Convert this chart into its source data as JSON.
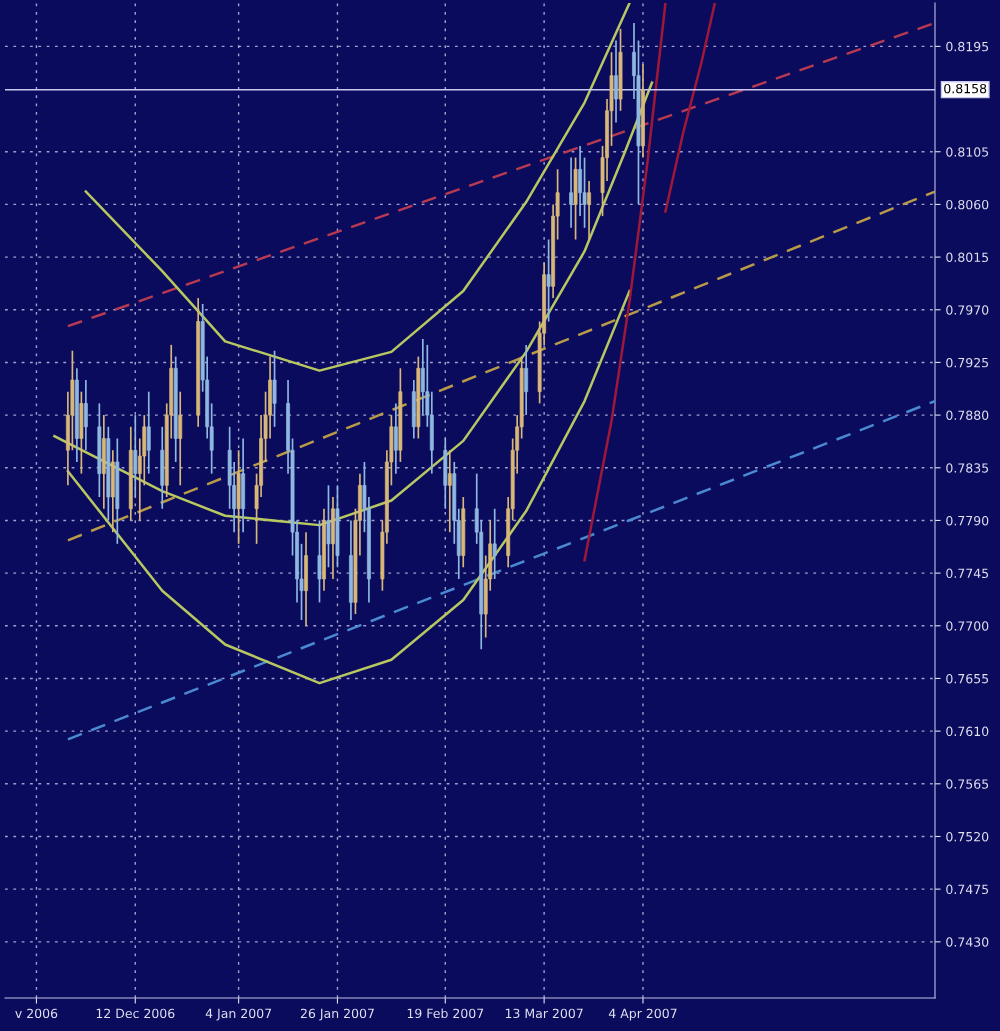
{
  "chart_data": {
    "type": "candlestick",
    "xlim": [
      "2006-11-13",
      "2007-06-08"
    ],
    "xticks": [
      {
        "value": "2006-11-20",
        "label": "v 2006"
      },
      {
        "value": "2006-12-12",
        "label": "12 Dec 2006"
      },
      {
        "value": "2007-01-04",
        "label": "4 Jan 2007"
      },
      {
        "value": "2007-01-26",
        "label": "26 Jan 2007"
      },
      {
        "value": "2007-02-19",
        "label": "19 Feb 2007"
      },
      {
        "value": "2007-03-13",
        "label": "13 Mar 2007"
      },
      {
        "value": "2007-04-04",
        "label": "4 Apr 2007"
      }
    ],
    "ylim": [
      0.7382,
      0.8232
    ],
    "yticks": [
      {
        "value": 0.743,
        "label": "0.7430"
      },
      0.7475,
      {
        "value": 0.752,
        "label": "0.7520"
      },
      0.7565,
      {
        "value": 0.761,
        "label": "0.7610"
      },
      0.7655,
      {
        "value": 0.77,
        "label": "0.7700"
      },
      0.7745,
      {
        "value": 0.779,
        "label": "0.7790"
      },
      0.7835,
      {
        "value": 0.788,
        "label": "0.7880"
      },
      0.7925,
      {
        "value": 0.797,
        "label": "0.7970"
      },
      0.8015,
      {
        "value": 0.806,
        "label": "0.8060"
      },
      0.8105,
      0.8195
    ],
    "grid": true,
    "legend": false,
    "ref_lines": [
      {
        "axis": "y",
        "value": 0.8158,
        "label": "0.8158",
        "color": "#c8c8f0"
      }
    ],
    "series": [
      {
        "color": "#d8b878",
        "x": [
          "2006-11-27",
          "2006-11-28",
          "2006-11-30",
          "2006-12-05",
          "2006-12-07",
          "2006-12-11",
          "2006-12-13",
          "2006-12-14",
          "2006-12-19",
          "2006-12-20",
          "2006-12-22",
          "2006-12-26",
          "2007-01-04",
          "2007-01-08",
          "2007-01-09",
          "2007-01-10",
          "2007-01-11",
          "2007-01-19",
          "2007-01-23",
          "2007-01-25",
          "2007-01-30",
          "2007-01-31",
          "2007-02-05",
          "2007-02-06",
          "2007-02-07",
          "2007-02-09",
          "2007-02-13",
          "2007-02-20",
          "2007-02-23",
          "2007-02-28",
          "2007-03-01",
          "2007-03-05",
          "2007-03-06",
          "2007-03-07",
          "2007-03-08",
          "2007-03-12",
          "2007-03-13",
          "2007-03-15",
          "2007-03-16",
          "2007-03-20",
          "2007-03-23",
          "2007-03-26",
          "2007-03-27",
          "2007-03-28",
          "2007-03-30",
          "2007-04-04"
        ],
        "ohlc": [
          [
            0.785,
            0.79,
            0.782,
            0.788
          ],
          [
            0.788,
            0.7935,
            0.785,
            0.791
          ],
          [
            0.786,
            0.79,
            0.783,
            0.789
          ],
          [
            0.783,
            0.788,
            0.78,
            0.786
          ],
          [
            0.781,
            0.785,
            0.778,
            0.784
          ],
          [
            0.78,
            0.787,
            0.779,
            0.785
          ],
          [
            0.783,
            0.786,
            0.779,
            0.7845
          ],
          [
            0.7845,
            0.788,
            0.782,
            0.787
          ],
          [
            0.782,
            0.789,
            0.781,
            0.788
          ],
          [
            0.788,
            0.794,
            0.786,
            0.792
          ],
          [
            0.786,
            0.79,
            0.782,
            0.788
          ],
          [
            0.788,
            0.798,
            0.787,
            0.796
          ],
          [
            0.78,
            0.785,
            0.777,
            0.783
          ],
          [
            0.78,
            0.783,
            0.777,
            0.782
          ],
          [
            0.782,
            0.788,
            0.781,
            0.786
          ],
          [
            0.786,
            0.79,
            0.784,
            0.788
          ],
          [
            0.788,
            0.793,
            0.786,
            0.791
          ],
          [
            0.773,
            0.778,
            0.77,
            0.776
          ],
          [
            0.774,
            0.78,
            0.773,
            0.779
          ],
          [
            0.777,
            0.781,
            0.774,
            0.78
          ],
          [
            0.772,
            0.78,
            0.771,
            0.779
          ],
          [
            0.779,
            0.783,
            0.776,
            0.782
          ],
          [
            0.774,
            0.779,
            0.773,
            0.778
          ],
          [
            0.778,
            0.785,
            0.777,
            0.784
          ],
          [
            0.784,
            0.788,
            0.782,
            0.787
          ],
          [
            0.785,
            0.792,
            0.784,
            0.79
          ],
          [
            0.787,
            0.793,
            0.786,
            0.792
          ],
          [
            0.782,
            0.785,
            0.778,
            0.783
          ],
          [
            0.776,
            0.781,
            0.775,
            0.78
          ],
          [
            0.771,
            0.776,
            0.769,
            0.774
          ],
          [
            0.774,
            0.779,
            0.773,
            0.777
          ],
          [
            0.776,
            0.781,
            0.775,
            0.78
          ],
          [
            0.78,
            0.786,
            0.779,
            0.785
          ],
          [
            0.785,
            0.788,
            0.783,
            0.787
          ],
          [
            0.787,
            0.793,
            0.786,
            0.792
          ],
          [
            0.79,
            0.796,
            0.789,
            0.795
          ],
          [
            0.795,
            0.801,
            0.794,
            0.8
          ],
          [
            0.799,
            0.806,
            0.798,
            0.805
          ],
          [
            0.805,
            0.809,
            0.803,
            0.807
          ],
          [
            0.806,
            0.81,
            0.803,
            0.809
          ],
          [
            0.806,
            0.808,
            0.803,
            0.807
          ],
          [
            0.807,
            0.811,
            0.805,
            0.81
          ],
          [
            0.81,
            0.815,
            0.808,
            0.814
          ],
          [
            0.814,
            0.819,
            0.811,
            0.817
          ],
          [
            0.815,
            0.821,
            0.814,
            0.819
          ],
          [
            0.811,
            0.818,
            0.81,
            0.8158
          ]
        ]
      },
      {
        "color": "#8fb8e0",
        "x": [
          "2006-11-29",
          "2006-12-01",
          "2006-12-04",
          "2006-12-06",
          "2006-12-08",
          "2006-12-12",
          "2006-12-15",
          "2006-12-18",
          "2006-12-21",
          "2006-12-27",
          "2006-12-28",
          "2006-12-29",
          "2007-01-02",
          "2007-01-03",
          "2007-01-05",
          "2007-01-12",
          "2007-01-15",
          "2007-01-16",
          "2007-01-17",
          "2007-01-18",
          "2007-01-22",
          "2007-01-24",
          "2007-01-26",
          "2007-01-29",
          "2007-02-01",
          "2007-02-02",
          "2007-02-08",
          "2007-02-12",
          "2007-02-14",
          "2007-02-15",
          "2007-02-16",
          "2007-02-19",
          "2007-02-21",
          "2007-02-22",
          "2007-02-26",
          "2007-02-27",
          "2007-03-02",
          "2007-03-09",
          "2007-03-14",
          "2007-03-19",
          "2007-03-21",
          "2007-03-22",
          "2007-03-29",
          "2007-04-02",
          "2007-04-03"
        ],
        "ohlc": [
          [
            0.791,
            0.792,
            0.784,
            0.786
          ],
          [
            0.789,
            0.791,
            0.785,
            0.787
          ],
          [
            0.787,
            0.789,
            0.781,
            0.783
          ],
          [
            0.786,
            0.787,
            0.779,
            0.781
          ],
          [
            0.784,
            0.786,
            0.777,
            0.78
          ],
          [
            0.785,
            0.788,
            0.781,
            0.783
          ],
          [
            0.787,
            0.79,
            0.783,
            0.785
          ],
          [
            0.785,
            0.787,
            0.78,
            0.782
          ],
          [
            0.792,
            0.793,
            0.784,
            0.786
          ],
          [
            0.796,
            0.7975,
            0.79,
            0.791
          ],
          [
            0.791,
            0.793,
            0.786,
            0.787
          ],
          [
            0.787,
            0.789,
            0.783,
            0.785
          ],
          [
            0.785,
            0.787,
            0.78,
            0.782
          ],
          [
            0.782,
            0.784,
            0.778,
            0.78
          ],
          [
            0.783,
            0.786,
            0.778,
            0.78
          ],
          [
            0.791,
            0.7935,
            0.787,
            0.789
          ],
          [
            0.789,
            0.791,
            0.783,
            0.785
          ],
          [
            0.785,
            0.786,
            0.776,
            0.778
          ],
          [
            0.778,
            0.779,
            0.772,
            0.774
          ],
          [
            0.774,
            0.777,
            0.7705,
            0.773
          ],
          [
            0.776,
            0.779,
            0.772,
            0.774
          ],
          [
            0.779,
            0.782,
            0.775,
            0.777
          ],
          [
            0.78,
            0.782,
            0.775,
            0.776
          ],
          [
            0.776,
            0.779,
            0.7705,
            0.772
          ],
          [
            0.782,
            0.784,
            0.778,
            0.78
          ],
          [
            0.78,
            0.781,
            0.772,
            0.774
          ],
          [
            0.787,
            0.789,
            0.783,
            0.785
          ],
          [
            0.79,
            0.791,
            0.786,
            0.787
          ],
          [
            0.792,
            0.7945,
            0.788,
            0.79
          ],
          [
            0.79,
            0.794,
            0.787,
            0.788
          ],
          [
            0.788,
            0.79,
            0.783,
            0.785
          ],
          [
            0.785,
            0.786,
            0.78,
            0.782
          ],
          [
            0.783,
            0.784,
            0.777,
            0.779
          ],
          [
            0.779,
            0.78,
            0.774,
            0.776
          ],
          [
            0.78,
            0.783,
            0.777,
            0.778
          ],
          [
            0.778,
            0.779,
            0.768,
            0.771
          ],
          [
            0.777,
            0.78,
            0.774,
            0.776
          ],
          [
            0.792,
            0.794,
            0.788,
            0.79
          ],
          [
            0.8,
            0.803,
            0.796,
            0.799
          ],
          [
            0.807,
            0.81,
            0.804,
            0.806
          ],
          [
            0.809,
            0.811,
            0.805,
            0.807
          ],
          [
            0.807,
            0.81,
            0.804,
            0.806
          ],
          [
            0.817,
            0.82,
            0.813,
            0.815
          ],
          [
            0.819,
            0.8215,
            0.815,
            0.817
          ],
          [
            0.817,
            0.82,
            0.806,
            0.811
          ]
        ]
      },
      {
        "type": "line",
        "color": "#b89a48",
        "line_style": "dashed",
        "x": [
          "2006-11-27",
          "2007-06-08"
        ],
        "values": [
          0.7773,
          0.8071
        ]
      },
      {
        "type": "line",
        "color": "#b83a50",
        "line_style": "dashed",
        "x": [
          "2006-11-27",
          "2007-06-08"
        ],
        "values": [
          0.7956,
          0.8215
        ]
      },
      {
        "type": "line",
        "color": "#4a8ad0",
        "line_style": "dashed",
        "x": [
          "2006-11-27",
          "2007-06-08"
        ],
        "values": [
          0.7603,
          0.7892
        ]
      },
      {
        "type": "line",
        "color": "#b8c860",
        "line_style": "solid",
        "x": [
          "2006-12-01",
          "2006-12-18",
          "2007-01-01",
          "2007-01-22",
          "2007-02-07",
          "2007-02-23",
          "2007-03-09",
          "2007-03-22",
          "2007-04-01"
        ],
        "values": [
          0.8071,
          0.8003,
          0.7943,
          0.7918,
          0.7934,
          0.7986,
          0.8062,
          0.8147,
          0.8232
        ]
      },
      {
        "type": "line",
        "color": "#b8c860",
        "line_style": "solid",
        "x": [
          "2006-11-24",
          "2006-12-18",
          "2007-01-01",
          "2007-01-22",
          "2007-02-07",
          "2007-02-23",
          "2007-03-09",
          "2007-03-22",
          "2007-03-31",
          "2007-04-06"
        ],
        "values": [
          0.7862,
          0.7815,
          0.7794,
          0.7786,
          0.7807,
          0.7858,
          0.7934,
          0.802,
          0.8105,
          0.8164
        ]
      },
      {
        "type": "line",
        "color": "#b8c860",
        "line_style": "solid",
        "x": [
          "2006-11-27",
          "2006-12-18",
          "2007-01-01",
          "2007-01-22",
          "2007-02-07",
          "2007-02-23",
          "2007-03-09",
          "2007-03-22",
          "2007-04-01"
        ],
        "values": [
          0.7832,
          0.773,
          0.7684,
          0.7651,
          0.7671,
          0.7722,
          0.7798,
          0.7892,
          0.7986
        ]
      },
      {
        "type": "line",
        "color": "#a01838",
        "line_style": "solid",
        "x": [
          "2007-03-22",
          "2007-03-28",
          "2007-04-01",
          "2007-04-05",
          "2007-04-09"
        ],
        "values": [
          0.7756,
          0.7875,
          0.7977,
          0.8096,
          0.8232
        ]
      },
      {
        "type": "line",
        "color": "#a01838",
        "line_style": "solid",
        "x": [
          "2007-04-09",
          "2007-04-13",
          "2007-04-17",
          "2007-04-20"
        ],
        "values": [
          0.8054,
          0.8122,
          0.8181,
          0.8232
        ]
      }
    ]
  }
}
